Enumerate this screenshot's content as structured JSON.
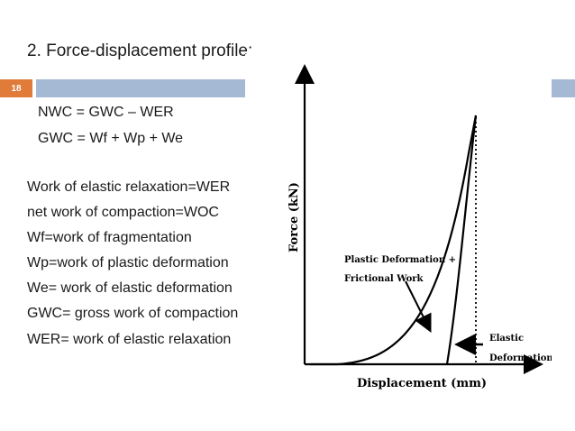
{
  "slide": {
    "title": "2. Force-displacement profile:",
    "number": "18",
    "equations": [
      "NWC = GWC – WER",
      "GWC = Wf + Wp + We"
    ],
    "definitions": [
      "Work of elastic relaxation=WER",
      "net work of compaction=WOC",
      "Wf=work of fragmentation",
      "Wp=work of plastic deformation",
      "We= work of elastic deformation",
      "GWC= gross work of compaction",
      "WER= work of elastic relaxation"
    ]
  },
  "figure": {
    "y_axis_label": "Force (kN)",
    "x_axis_label": "Displacement (mm)",
    "annotation_plastic_line1": "Plastic Deformation +",
    "annotation_plastic_line2": "Frictional Work",
    "annotation_elastic_line1": "Elastic",
    "annotation_elastic_line2": "Deformation"
  },
  "colors": {
    "slide_number_bg": "#e07b39",
    "accent_bar": "#a5b9d4"
  }
}
